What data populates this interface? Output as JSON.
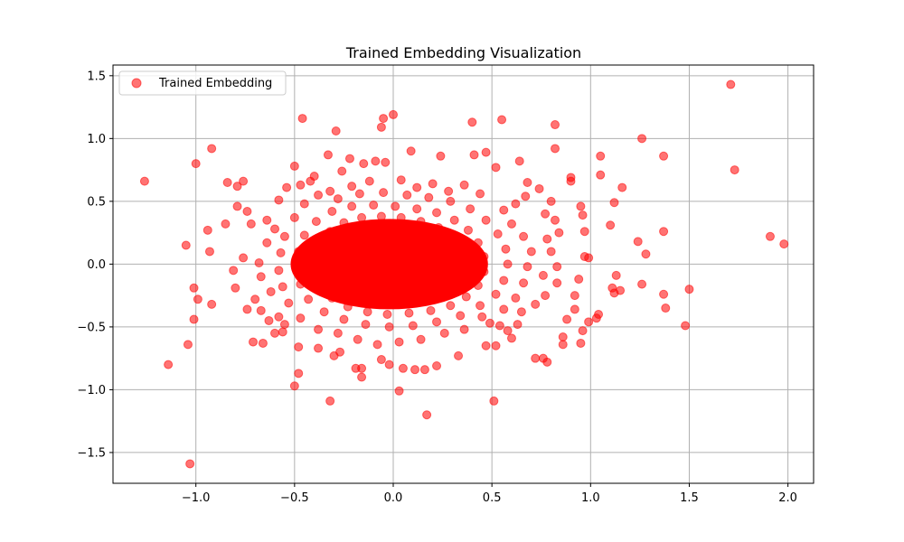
{
  "chart_data": {
    "type": "scatter",
    "title": "Trained Embedding Visualization",
    "xlabel": "",
    "ylabel": "",
    "xlim": [
      -1.42,
      2.13
    ],
    "ylim": [
      -1.745,
      1.585
    ],
    "xticks": [
      -1.0,
      -0.5,
      0.0,
      0.5,
      1.0,
      1.5,
      2.0
    ],
    "xtick_labels": [
      "−1.0",
      "−0.5",
      "0.0",
      "0.5",
      "1.0",
      "1.5",
      "2.0"
    ],
    "yticks": [
      -1.5,
      -1.0,
      -0.5,
      0.0,
      0.5,
      1.0,
      1.5
    ],
    "ytick_labels": [
      "−1.5",
      "−1.0",
      "−0.5",
      "0.0",
      "0.5",
      "1.0",
      "1.5"
    ],
    "grid": true,
    "legend_position": "top-left",
    "series": [
      {
        "name": "Trained Embedding",
        "color": "#ff0000",
        "alpha": 0.55,
        "core_points_note": "",
        "points": [
          [
            1.71,
            1.43
          ],
          [
            1.73,
            0.75
          ],
          [
            1.91,
            0.22
          ],
          [
            1.98,
            0.16
          ],
          [
            1.5,
            -0.2
          ],
          [
            1.48,
            -0.49
          ],
          [
            1.37,
            0.86
          ],
          [
            1.37,
            0.26
          ],
          [
            1.37,
            -0.24
          ],
          [
            1.38,
            -0.35
          ],
          [
            1.26,
            1.0
          ],
          [
            1.28,
            0.08
          ],
          [
            1.26,
            -0.16
          ],
          [
            1.24,
            0.18
          ],
          [
            -1.26,
            0.66
          ],
          [
            -1.14,
            -0.8
          ],
          [
            -1.03,
            -1.59
          ],
          [
            -1.04,
            -0.64
          ],
          [
            -1.0,
            0.8
          ],
          [
            -0.92,
            0.92
          ],
          [
            -1.05,
            0.15
          ],
          [
            -1.01,
            -0.19
          ],
          [
            -1.01,
            -0.44
          ],
          [
            -0.92,
            -0.32
          ],
          [
            -0.99,
            -0.28
          ],
          [
            -0.93,
            0.1
          ],
          [
            -0.94,
            0.27
          ],
          [
            -0.85,
            0.32
          ],
          [
            -0.79,
            0.46
          ],
          [
            -0.79,
            0.62
          ],
          [
            -0.84,
            0.65
          ],
          [
            -0.76,
            0.66
          ],
          [
            -0.46,
            1.16
          ],
          [
            -0.29,
            1.06
          ],
          [
            -0.05,
            1.16
          ],
          [
            0.0,
            1.19
          ],
          [
            -0.06,
            1.09
          ],
          [
            0.4,
            1.13
          ],
          [
            0.55,
            1.15
          ],
          [
            0.82,
            1.11
          ],
          [
            0.82,
            0.92
          ],
          [
            0.03,
            -1.01
          ],
          [
            0.17,
            -1.2
          ],
          [
            0.51,
            -1.09
          ],
          [
            -0.32,
            -1.09
          ],
          [
            -0.5,
            -0.97
          ],
          [
            -0.48,
            -0.87
          ],
          [
            -0.16,
            -0.9
          ],
          [
            0.78,
            -0.78
          ],
          [
            0.72,
            -0.75
          ],
          [
            0.76,
            -0.75
          ],
          [
            1.05,
            0.86
          ],
          [
            1.05,
            0.71
          ],
          [
            1.16,
            0.61
          ],
          [
            1.12,
            0.49
          ],
          [
            1.1,
            0.31
          ],
          [
            1.13,
            -0.09
          ],
          [
            1.11,
            -0.19
          ],
          [
            1.12,
            -0.23
          ],
          [
            1.15,
            -0.21
          ],
          [
            1.04,
            -0.4
          ],
          [
            1.03,
            -0.43
          ],
          [
            0.99,
            -0.46
          ],
          [
            0.96,
            -0.53
          ],
          [
            0.95,
            -0.63
          ],
          [
            0.86,
            -0.58
          ],
          [
            0.86,
            -0.64
          ],
          [
            -0.71,
            -0.62
          ],
          [
            -0.66,
            -0.63
          ],
          [
            -0.56,
            -0.54
          ],
          [
            -0.48,
            -0.66
          ],
          [
            -0.38,
            -0.67
          ],
          [
            -0.3,
            -0.73
          ],
          [
            -0.27,
            -0.7
          ],
          [
            -0.16,
            -0.83
          ],
          [
            -0.19,
            -0.83
          ],
          [
            -0.06,
            -0.76
          ],
          [
            -0.02,
            -0.8
          ],
          [
            0.05,
            -0.83
          ],
          [
            0.11,
            -0.84
          ],
          [
            0.16,
            -0.84
          ],
          [
            0.22,
            -0.81
          ],
          [
            0.33,
            -0.73
          ],
          [
            0.47,
            -0.65
          ],
          [
            0.52,
            -0.65
          ],
          [
            0.6,
            -0.59
          ],
          [
            0.9,
            0.69
          ],
          [
            0.9,
            0.66
          ],
          [
            0.95,
            0.46
          ],
          [
            0.96,
            0.39
          ],
          [
            0.97,
            0.26
          ],
          [
            0.97,
            0.06
          ],
          [
            0.99,
            0.05
          ],
          [
            0.94,
            -0.12
          ],
          [
            0.92,
            -0.25
          ],
          [
            0.92,
            -0.36
          ],
          [
            0.88,
            -0.44
          ],
          [
            -0.74,
            0.42
          ],
          [
            -0.72,
            0.32
          ],
          [
            -0.76,
            0.05
          ],
          [
            -0.81,
            -0.05
          ],
          [
            -0.8,
            -0.19
          ],
          [
            -0.74,
            -0.36
          ],
          [
            -0.7,
            -0.28
          ],
          [
            -0.67,
            -0.37
          ],
          [
            -0.63,
            -0.45
          ],
          [
            -0.58,
            -0.42
          ],
          [
            -0.55,
            -0.48
          ],
          [
            -0.6,
            -0.55
          ],
          [
            -0.5,
            0.78
          ],
          [
            -0.4,
            0.7
          ],
          [
            -0.33,
            0.87
          ],
          [
            -0.26,
            0.74
          ],
          [
            -0.22,
            0.84
          ],
          [
            -0.15,
            0.8
          ],
          [
            -0.09,
            0.82
          ],
          [
            -0.04,
            0.81
          ],
          [
            0.09,
            0.9
          ],
          [
            0.24,
            0.86
          ],
          [
            0.41,
            0.87
          ],
          [
            0.47,
            0.89
          ],
          [
            0.52,
            0.77
          ],
          [
            0.64,
            0.82
          ],
          [
            0.68,
            0.65
          ],
          [
            0.74,
            0.6
          ],
          [
            0.67,
            0.54
          ],
          [
            0.62,
            0.48
          ],
          [
            0.8,
            0.5
          ],
          [
            0.77,
            0.4
          ],
          [
            0.82,
            0.35
          ],
          [
            0.84,
            0.25
          ],
          [
            0.78,
            0.2
          ],
          [
            0.8,
            0.1
          ],
          [
            0.83,
            -0.02
          ],
          [
            0.76,
            -0.09
          ],
          [
            0.83,
            -0.15
          ],
          [
            0.77,
            -0.25
          ],
          [
            0.72,
            -0.32
          ],
          [
            0.65,
            -0.38
          ],
          [
            0.63,
            -0.48
          ],
          [
            0.58,
            -0.53
          ],
          [
            0.54,
            -0.49
          ],
          [
            0.49,
            -0.47
          ],
          [
            -0.64,
            0.35
          ],
          [
            -0.64,
            0.17
          ],
          [
            -0.68,
            0.01
          ],
          [
            -0.67,
            -0.1
          ],
          [
            -0.62,
            -0.22
          ],
          [
            -0.6,
            0.28
          ],
          [
            -0.58,
            0.51
          ],
          [
            -0.54,
            0.61
          ],
          [
            -0.47,
            0.63
          ],
          [
            -0.42,
            0.66
          ],
          [
            -0.32,
            0.58
          ],
          [
            -0.21,
            0.62
          ],
          [
            -0.12,
            0.66
          ],
          [
            0.04,
            0.67
          ],
          [
            0.12,
            0.61
          ],
          [
            0.2,
            0.64
          ],
          [
            0.28,
            0.58
          ],
          [
            0.36,
            0.63
          ],
          [
            0.44,
            0.56
          ],
          [
            0.56,
            0.43
          ],
          [
            0.6,
            0.32
          ],
          [
            0.66,
            0.22
          ],
          [
            0.7,
            0.1
          ],
          [
            0.68,
            -0.02
          ],
          [
            0.66,
            -0.15
          ],
          [
            0.62,
            -0.27
          ],
          [
            0.56,
            -0.36
          ],
          [
            0.45,
            -0.42
          ],
          [
            0.36,
            -0.52
          ],
          [
            0.26,
            -0.55
          ],
          [
            0.14,
            -0.6
          ],
          [
            0.03,
            -0.62
          ],
          [
            -0.08,
            -0.64
          ],
          [
            -0.18,
            -0.6
          ],
          [
            -0.28,
            -0.55
          ],
          [
            -0.38,
            -0.52
          ],
          [
            -0.47,
            -0.43
          ],
          [
            -0.53,
            -0.31
          ],
          [
            -0.56,
            -0.18
          ],
          [
            -0.58,
            -0.05
          ],
          [
            -0.57,
            0.09
          ],
          [
            -0.55,
            0.22
          ],
          [
            -0.5,
            0.37
          ],
          [
            -0.45,
            0.48
          ],
          [
            -0.38,
            0.55
          ],
          [
            -0.28,
            0.52
          ],
          [
            -0.17,
            0.56
          ],
          [
            -0.05,
            0.57
          ],
          [
            0.07,
            0.55
          ],
          [
            0.18,
            0.53
          ],
          [
            0.29,
            0.5
          ],
          [
            0.39,
            0.44
          ],
          [
            0.47,
            0.35
          ],
          [
            0.53,
            0.24
          ],
          [
            0.57,
            0.12
          ],
          [
            0.58,
            0.0
          ],
          [
            0.56,
            -0.13
          ],
          [
            0.52,
            -0.24
          ],
          [
            0.44,
            -0.33
          ],
          [
            0.34,
            -0.41
          ],
          [
            0.22,
            -0.46
          ],
          [
            0.1,
            -0.49
          ],
          [
            -0.02,
            -0.5
          ],
          [
            -0.14,
            -0.48
          ],
          [
            -0.25,
            -0.44
          ],
          [
            -0.35,
            -0.38
          ],
          [
            -0.43,
            -0.28
          ],
          [
            -0.47,
            -0.16
          ],
          [
            -0.49,
            -0.03
          ],
          [
            -0.48,
            0.1
          ],
          [
            -0.45,
            0.23
          ],
          [
            -0.39,
            0.34
          ],
          [
            -0.31,
            0.42
          ],
          [
            -0.21,
            0.46
          ],
          [
            -0.1,
            0.47
          ],
          [
            0.01,
            0.46
          ],
          [
            0.12,
            0.44
          ],
          [
            0.22,
            0.41
          ],
          [
            0.31,
            0.35
          ],
          [
            0.38,
            0.27
          ],
          [
            0.43,
            0.17
          ],
          [
            0.46,
            0.06
          ],
          [
            0.46,
            -0.06
          ],
          [
            0.43,
            -0.17
          ],
          [
            0.37,
            -0.26
          ],
          [
            0.29,
            -0.33
          ],
          [
            0.19,
            -0.37
          ],
          [
            0.08,
            -0.39
          ],
          [
            -0.03,
            -0.4
          ],
          [
            -0.13,
            -0.38
          ],
          [
            -0.23,
            -0.34
          ],
          [
            -0.31,
            -0.27
          ],
          [
            -0.36,
            -0.18
          ],
          [
            -0.39,
            -0.07
          ],
          [
            -0.39,
            0.05
          ],
          [
            -0.37,
            0.16
          ],
          [
            -0.32,
            0.26
          ],
          [
            -0.25,
            0.33
          ],
          [
            -0.16,
            0.37
          ],
          [
            -0.06,
            0.38
          ],
          [
            0.04,
            0.37
          ],
          [
            0.14,
            0.34
          ],
          [
            0.23,
            0.29
          ],
          [
            0.29,
            0.22
          ],
          [
            0.33,
            0.13
          ],
          [
            0.35,
            0.03
          ],
          [
            0.34,
            -0.07
          ],
          [
            0.31,
            -0.16
          ],
          [
            0.25,
            -0.23
          ],
          [
            0.17,
            -0.28
          ],
          [
            0.08,
            -0.3
          ],
          [
            -0.02,
            -0.3
          ],
          [
            -0.11,
            -0.28
          ],
          [
            -0.19,
            -0.24
          ],
          [
            -0.25,
            -0.18
          ],
          [
            -0.28,
            -0.1
          ],
          [
            -0.29,
            -0.01
          ],
          [
            -0.28,
            0.08
          ],
          [
            -0.24,
            0.16
          ],
          [
            -0.18,
            0.22
          ],
          [
            -0.1,
            0.26
          ],
          [
            -0.01,
            0.27
          ],
          [
            0.08,
            0.26
          ],
          [
            0.16,
            0.22
          ],
          [
            0.21,
            0.16
          ],
          [
            0.24,
            0.08
          ],
          [
            0.25,
            0.0
          ],
          [
            0.23,
            -0.08
          ],
          [
            0.19,
            -0.15
          ],
          [
            0.12,
            -0.19
          ],
          [
            0.04,
            -0.21
          ],
          [
            -0.04,
            -0.21
          ],
          [
            -0.12,
            -0.18
          ],
          [
            -0.18,
            -0.13
          ],
          [
            -0.21,
            -0.06
          ],
          [
            -0.21,
            0.02
          ],
          [
            -0.19,
            0.1
          ],
          [
            -0.14,
            0.15
          ],
          [
            -0.07,
            0.18
          ],
          [
            0.01,
            0.18
          ],
          [
            0.09,
            0.16
          ],
          [
            0.14,
            0.11
          ],
          [
            0.16,
            0.04
          ],
          [
            0.15,
            -0.03
          ],
          [
            0.12,
            -0.1
          ],
          [
            0.06,
            -0.13
          ],
          [
            -0.01,
            -0.13
          ],
          [
            -0.08,
            -0.11
          ],
          [
            -0.12,
            -0.06
          ],
          [
            -0.13,
            0.01
          ],
          [
            -0.11,
            0.07
          ],
          [
            -0.06,
            0.1
          ],
          [
            0.0,
            0.1
          ],
          [
            0.06,
            0.08
          ],
          [
            0.08,
            0.03
          ],
          [
            0.07,
            -0.03
          ],
          [
            0.03,
            -0.06
          ],
          [
            -0.03,
            -0.05
          ],
          [
            -0.05,
            0.0
          ],
          [
            -0.02,
            0.04
          ],
          [
            0.02,
            0.02
          ]
        ],
        "core_ellipse": {
          "cx": -0.02,
          "cy": 0.0,
          "rx": 0.5,
          "ry": 0.36
        }
      }
    ]
  },
  "legend": {
    "label": "Trained Embedding"
  },
  "title_text": "Trained Embedding Visualization"
}
